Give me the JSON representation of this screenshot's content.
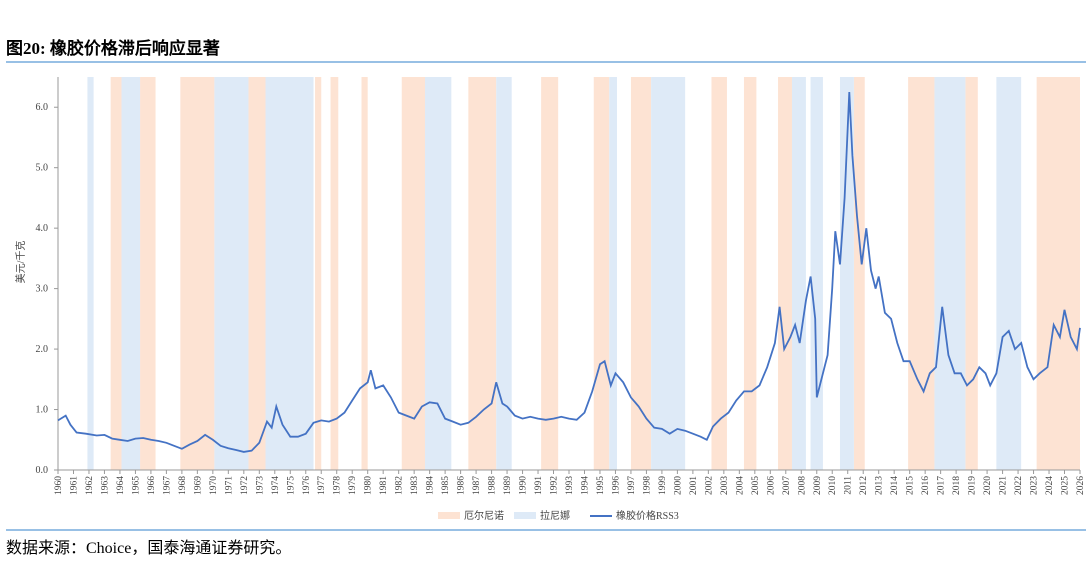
{
  "chart_data": {
    "type": "line",
    "title": "图20: 橡胶价格滞后响应显著",
    "y_label": "美元/千克",
    "source": "数据来源：Choice，国泰海通证券研究。",
    "xlim": [
      1960,
      2026
    ],
    "xticks": [
      1960,
      1961,
      1962,
      1963,
      1964,
      1965,
      1966,
      1967,
      1968,
      1969,
      1970,
      1971,
      1972,
      1973,
      1974,
      1975,
      1976,
      1977,
      1978,
      1979,
      1980,
      1981,
      1982,
      1983,
      1984,
      1985,
      1986,
      1987,
      1988,
      1989,
      1990,
      1991,
      1992,
      1993,
      1994,
      1995,
      1996,
      1997,
      1998,
      1999,
      2000,
      2001,
      2002,
      2003,
      2004,
      2005,
      2006,
      2007,
      2008,
      2009,
      2010,
      2011,
      2012,
      2013,
      2014,
      2015,
      2016,
      2017,
      2018,
      2019,
      2020,
      2021,
      2022,
      2023,
      2024,
      2025,
      2026
    ],
    "ylim": [
      0,
      6.5
    ],
    "yticks": [
      {
        "value": 0,
        "label": "0.0"
      },
      {
        "value": 1,
        "label": "1.0"
      },
      {
        "value": 2,
        "label": "2.0"
      },
      {
        "value": 3,
        "label": "3.0"
      },
      {
        "value": 4,
        "label": "4.0"
      },
      {
        "value": 5,
        "label": "5.0"
      },
      {
        "value": 6,
        "label": "6.0"
      }
    ],
    "bands": [
      {
        "name": "厄尔尼诺",
        "color": "#fde3d3",
        "periods": [
          [
            1963.4,
            1964.1
          ],
          [
            1965.3,
            1966.3
          ],
          [
            1967.9,
            1970.1
          ],
          [
            1972.3,
            1973.4
          ],
          [
            1976.6,
            1977.0
          ],
          [
            1977.6,
            1978.1
          ],
          [
            1979.6,
            1980.0
          ],
          [
            1982.2,
            1983.7
          ],
          [
            1986.5,
            1988.3
          ],
          [
            1991.2,
            1992.3
          ],
          [
            1994.6,
            1995.6
          ],
          [
            1997.0,
            1998.3
          ],
          [
            2002.2,
            2003.2
          ],
          [
            2004.3,
            2005.1
          ],
          [
            2006.5,
            2007.4
          ],
          [
            2011.4,
            2012.1
          ],
          [
            2014.9,
            2016.6
          ],
          [
            2018.6,
            2019.4
          ],
          [
            2023.2,
            2026.0
          ]
        ]
      },
      {
        "name": "拉尼娜",
        "color": "#deeaf7",
        "periods": [
          [
            1961.9,
            1962.3
          ],
          [
            1964.1,
            1965.3
          ],
          [
            1970.1,
            1972.3
          ],
          [
            1973.4,
            1976.5
          ],
          [
            1983.7,
            1985.4
          ],
          [
            1988.3,
            1989.3
          ],
          [
            1995.6,
            1996.1
          ],
          [
            1998.3,
            2000.5
          ],
          [
            2007.4,
            2008.3
          ],
          [
            2008.6,
            2009.4
          ],
          [
            2010.5,
            2011.4
          ],
          [
            2016.6,
            2018.6
          ],
          [
            2020.6,
            2022.2
          ]
        ]
      }
    ],
    "series": [
      {
        "name": "橡胶价格RSS3",
        "color": "#4472c4",
        "x": [
          1960,
          1960.5,
          1960.8,
          1961.2,
          1961.8,
          1962.5,
          1963,
          1963.5,
          1964,
          1964.5,
          1965,
          1965.5,
          1966,
          1966.5,
          1967,
          1967.5,
          1968,
          1968.5,
          1969,
          1969.5,
          1970,
          1970.5,
          1971,
          1971.5,
          1972,
          1972.5,
          1973,
          1973.5,
          1973.8,
          1974.1,
          1974.5,
          1975,
          1975.5,
          1976,
          1976.5,
          1977,
          1977.5,
          1978,
          1978.5,
          1979,
          1979.5,
          1980,
          1980.2,
          1980.5,
          1981,
          1981.5,
          1982,
          1982.5,
          1983,
          1983.5,
          1984,
          1984.5,
          1985,
          1985.5,
          1986,
          1986.5,
          1987,
          1987.5,
          1988,
          1988.3,
          1988.7,
          1989,
          1989.5,
          1990,
          1990.5,
          1991,
          1991.5,
          1992,
          1992.5,
          1993,
          1993.5,
          1994,
          1994.5,
          1995,
          1995.3,
          1995.7,
          1996,
          1996.5,
          1997,
          1997.5,
          1998,
          1998.5,
          1999,
          1999.5,
          2000,
          2000.5,
          2001,
          2001.5,
          2001.9,
          2002.3,
          2002.8,
          2003.3,
          2003.8,
          2004.3,
          2004.8,
          2005.3,
          2005.8,
          2006.3,
          2006.6,
          2006.9,
          2007.3,
          2007.6,
          2007.9,
          2008.3,
          2008.6,
          2008.9,
          2009.0,
          2009.3,
          2009.7,
          2010.0,
          2010.2,
          2010.5,
          2010.8,
          2011.1,
          2011.3,
          2011.6,
          2011.9,
          2012.2,
          2012.5,
          2012.8,
          2013.0,
          2013.4,
          2013.8,
          2014.2,
          2014.6,
          2015.0,
          2015.5,
          2015.9,
          2016.3,
          2016.7,
          2017.1,
          2017.5,
          2017.9,
          2018.3,
          2018.7,
          2019.1,
          2019.5,
          2019.9,
          2020.2,
          2020.6,
          2021.0,
          2021.4,
          2021.8,
          2022.2,
          2022.6,
          2023.0,
          2023.4,
          2023.9,
          2024.3,
          2024.7,
          2025.0,
          2025.4,
          2025.8,
          2026.0
        ],
        "values": [
          0.82,
          0.9,
          0.75,
          0.62,
          0.6,
          0.57,
          0.58,
          0.52,
          0.5,
          0.48,
          0.52,
          0.53,
          0.5,
          0.48,
          0.45,
          0.4,
          0.35,
          0.42,
          0.48,
          0.58,
          0.5,
          0.4,
          0.36,
          0.33,
          0.3,
          0.32,
          0.45,
          0.8,
          0.7,
          1.05,
          0.75,
          0.55,
          0.55,
          0.6,
          0.78,
          0.82,
          0.8,
          0.85,
          0.95,
          1.15,
          1.35,
          1.45,
          1.65,
          1.35,
          1.4,
          1.2,
          0.95,
          0.9,
          0.85,
          1.05,
          1.12,
          1.1,
          0.85,
          0.8,
          0.75,
          0.78,
          0.88,
          1.0,
          1.1,
          1.45,
          1.1,
          1.05,
          0.9,
          0.85,
          0.88,
          0.85,
          0.83,
          0.85,
          0.88,
          0.85,
          0.83,
          0.95,
          1.3,
          1.75,
          1.8,
          1.4,
          1.6,
          1.45,
          1.2,
          1.05,
          0.85,
          0.7,
          0.68,
          0.6,
          0.68,
          0.65,
          0.6,
          0.55,
          0.5,
          0.72,
          0.85,
          0.95,
          1.15,
          1.3,
          1.3,
          1.4,
          1.7,
          2.1,
          2.7,
          2.0,
          2.2,
          2.4,
          2.1,
          2.8,
          3.2,
          2.5,
          1.2,
          1.5,
          1.9,
          3.0,
          3.95,
          3.4,
          4.5,
          6.25,
          5.2,
          4.2,
          3.4,
          4.0,
          3.3,
          3.0,
          3.2,
          2.6,
          2.5,
          2.1,
          1.8,
          1.8,
          1.5,
          1.3,
          1.6,
          1.7,
          2.7,
          1.9,
          1.6,
          1.6,
          1.4,
          1.5,
          1.7,
          1.6,
          1.4,
          1.6,
          2.2,
          2.3,
          2.0,
          2.1,
          1.7,
          1.5,
          1.6,
          1.7,
          2.4,
          2.2,
          2.65,
          2.2,
          2.0,
          2.35
        ]
      }
    ]
  }
}
